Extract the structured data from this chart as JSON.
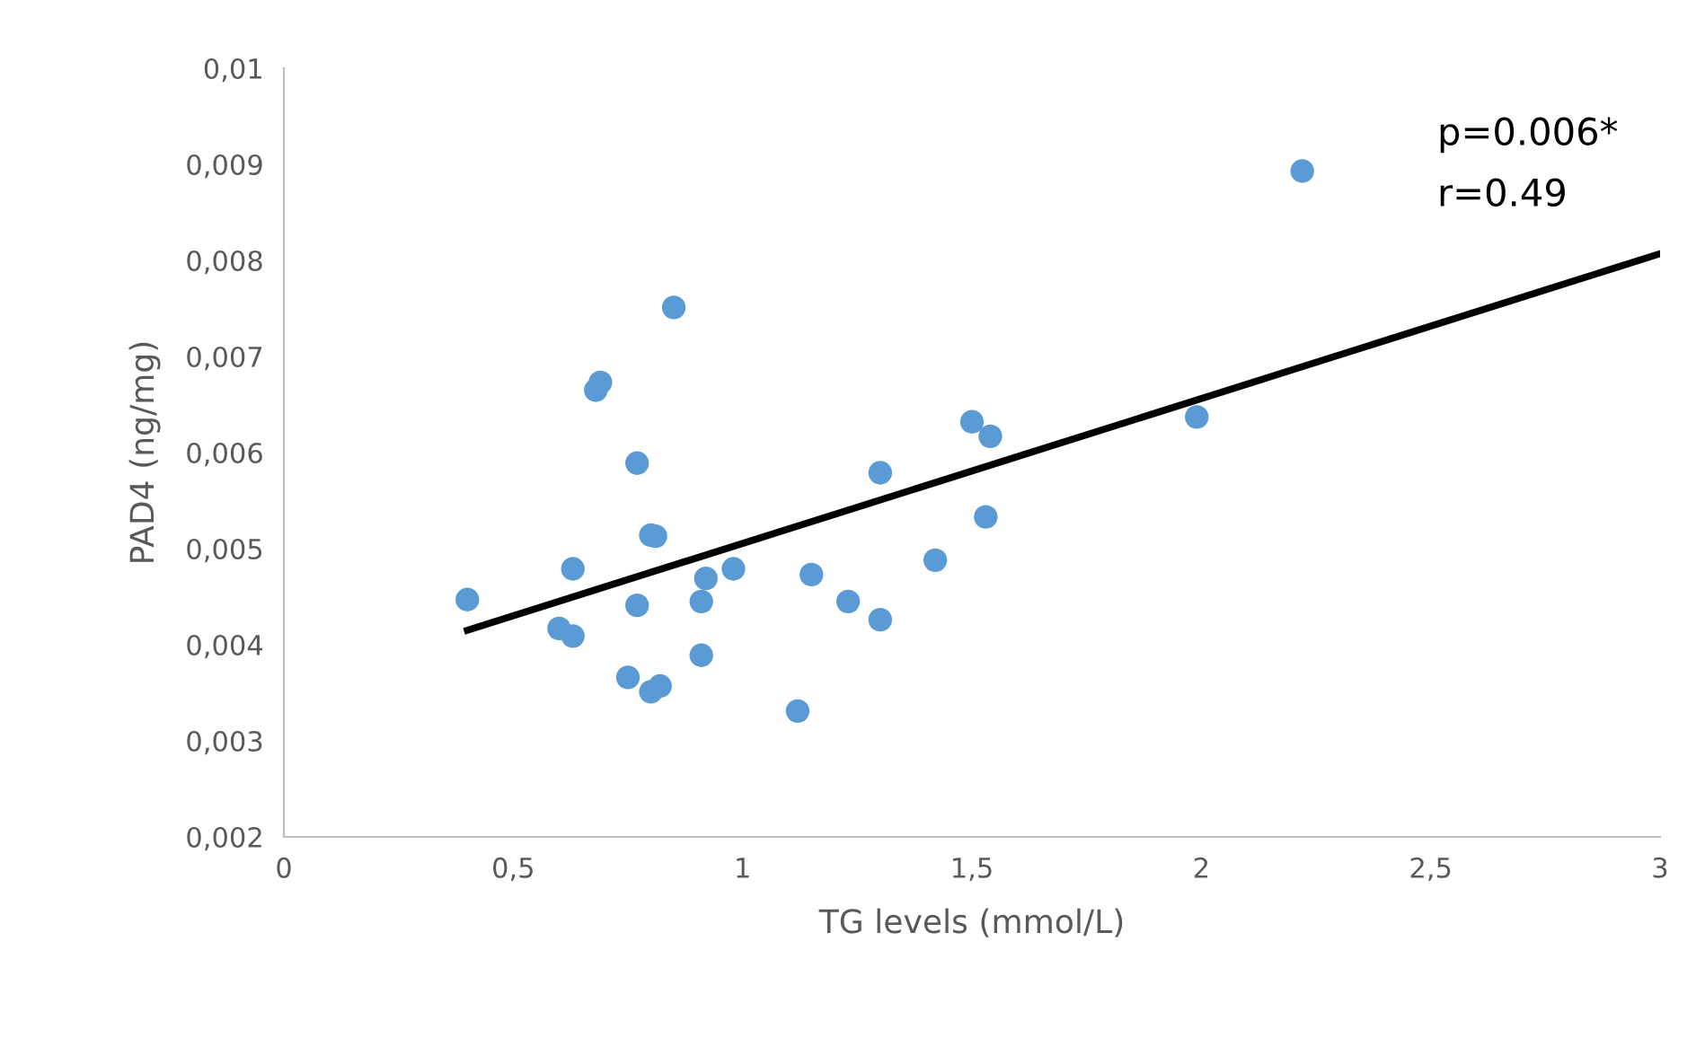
{
  "chart_data": {
    "type": "scatter",
    "xlabel": "TG levels (mmol/L)",
    "ylabel": "PAD4 (ng/mg)",
    "annotations": [
      "p=0.006*",
      "r=0.49"
    ],
    "xlim": [
      0,
      3
    ],
    "xticks": [
      {
        "value": 0,
        "label": "0"
      },
      {
        "value": 0.5,
        "label": "0,5"
      },
      {
        "value": 1,
        "label": "1"
      },
      {
        "value": 1.5,
        "label": "1,5"
      },
      {
        "value": 2,
        "label": "2"
      },
      {
        "value": 2.5,
        "label": "2,5"
      },
      {
        "value": 3,
        "label": "3"
      }
    ],
    "ylim": [
      0.002,
      0.01
    ],
    "yticks": [
      {
        "value": 0.002,
        "label": "0,002"
      },
      {
        "value": 0.003,
        "label": "0,003"
      },
      {
        "value": 0.004,
        "label": "0,004"
      },
      {
        "value": 0.005,
        "label": "0,005"
      },
      {
        "value": 0.006,
        "label": "0,006"
      },
      {
        "value": 0.007,
        "label": "0,007"
      },
      {
        "value": 0.008,
        "label": "0,008"
      },
      {
        "value": 0.009,
        "label": "0,009"
      },
      {
        "value": 0.01,
        "label": "0,01"
      }
    ],
    "grid": false,
    "legend": false,
    "marker": "circle",
    "series": [
      {
        "color": "#5b9bd5",
        "x": [
          0.4,
          0.6,
          0.63,
          0.63,
          0.75,
          0.77,
          0.77,
          0.8,
          0.81,
          0.8,
          0.82,
          0.68,
          0.69,
          0.85,
          0.91,
          0.92,
          0.91,
          0.98,
          1.12,
          1.15,
          1.23,
          1.3,
          1.3,
          1.42,
          1.5,
          1.54,
          1.53,
          1.99,
          2.22
        ],
        "values": [
          0.00447,
          0.00417,
          0.00479,
          0.00409,
          0.00366,
          0.00589,
          0.00441,
          0.00514,
          0.00513,
          0.00351,
          0.00357,
          0.00665,
          0.00673,
          0.00751,
          0.00445,
          0.00469,
          0.00389,
          0.00479,
          0.00331,
          0.00473,
          0.00445,
          0.00579,
          0.00426,
          0.00488,
          0.00632,
          0.00617,
          0.00533,
          0.00637,
          0.00893
        ]
      },
      {
        "type": "line",
        "color": "#000000",
        "x": [
          0.4,
          3.0
        ],
        "values": [
          0.00415,
          0.00807
        ],
        "marker": "none",
        "line_style": "solid"
      }
    ]
  }
}
